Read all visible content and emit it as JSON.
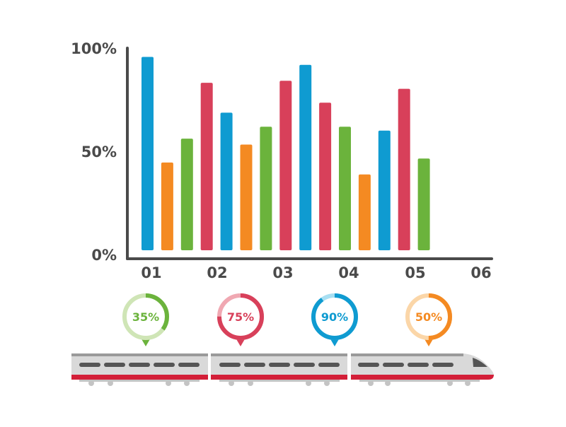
{
  "colors": {
    "blue": "#0f9bd1",
    "orange": "#f48a22",
    "green": "#6bb33c",
    "red": "#d8405a",
    "axis": "#4a4a4a",
    "train_body": "#d9d9d9",
    "train_stripe": "#d31f38",
    "train_window": "#555555"
  },
  "chart_data": {
    "type": "bar",
    "categories": [
      "01",
      "02",
      "03",
      "04",
      "05",
      "06"
    ],
    "y_tick_labels": [
      "100%",
      "50%",
      "0%"
    ],
    "ylim": [
      0,
      100
    ],
    "grid": false,
    "bars": [
      {
        "value": 97,
        "color": "blue"
      },
      {
        "value": 44,
        "color": "orange"
      },
      {
        "value": 56,
        "color": "green"
      },
      {
        "value": 84,
        "color": "red"
      },
      {
        "value": 69,
        "color": "blue"
      },
      {
        "value": 53,
        "color": "orange"
      },
      {
        "value": 62,
        "color": "green"
      },
      {
        "value": 85,
        "color": "red"
      },
      {
        "value": 93,
        "color": "blue"
      },
      {
        "value": 74,
        "color": "red"
      },
      {
        "value": 62,
        "color": "green"
      },
      {
        "value": 38,
        "color": "orange"
      },
      {
        "value": 60,
        "color": "blue"
      },
      {
        "value": 81,
        "color": "red"
      },
      {
        "value": 46,
        "color": "green"
      }
    ]
  },
  "gauges": [
    {
      "label": "35%",
      "value": 35,
      "color": "green",
      "light": "#cfe5b6"
    },
    {
      "label": "75%",
      "value": 75,
      "color": "red",
      "light": "#f0a8b2"
    },
    {
      "label": "90%",
      "value": 90,
      "color": "blue",
      "light": "#a8dff2"
    },
    {
      "label": "50%",
      "value": 50,
      "color": "orange",
      "light": "#fbd6a8"
    }
  ]
}
